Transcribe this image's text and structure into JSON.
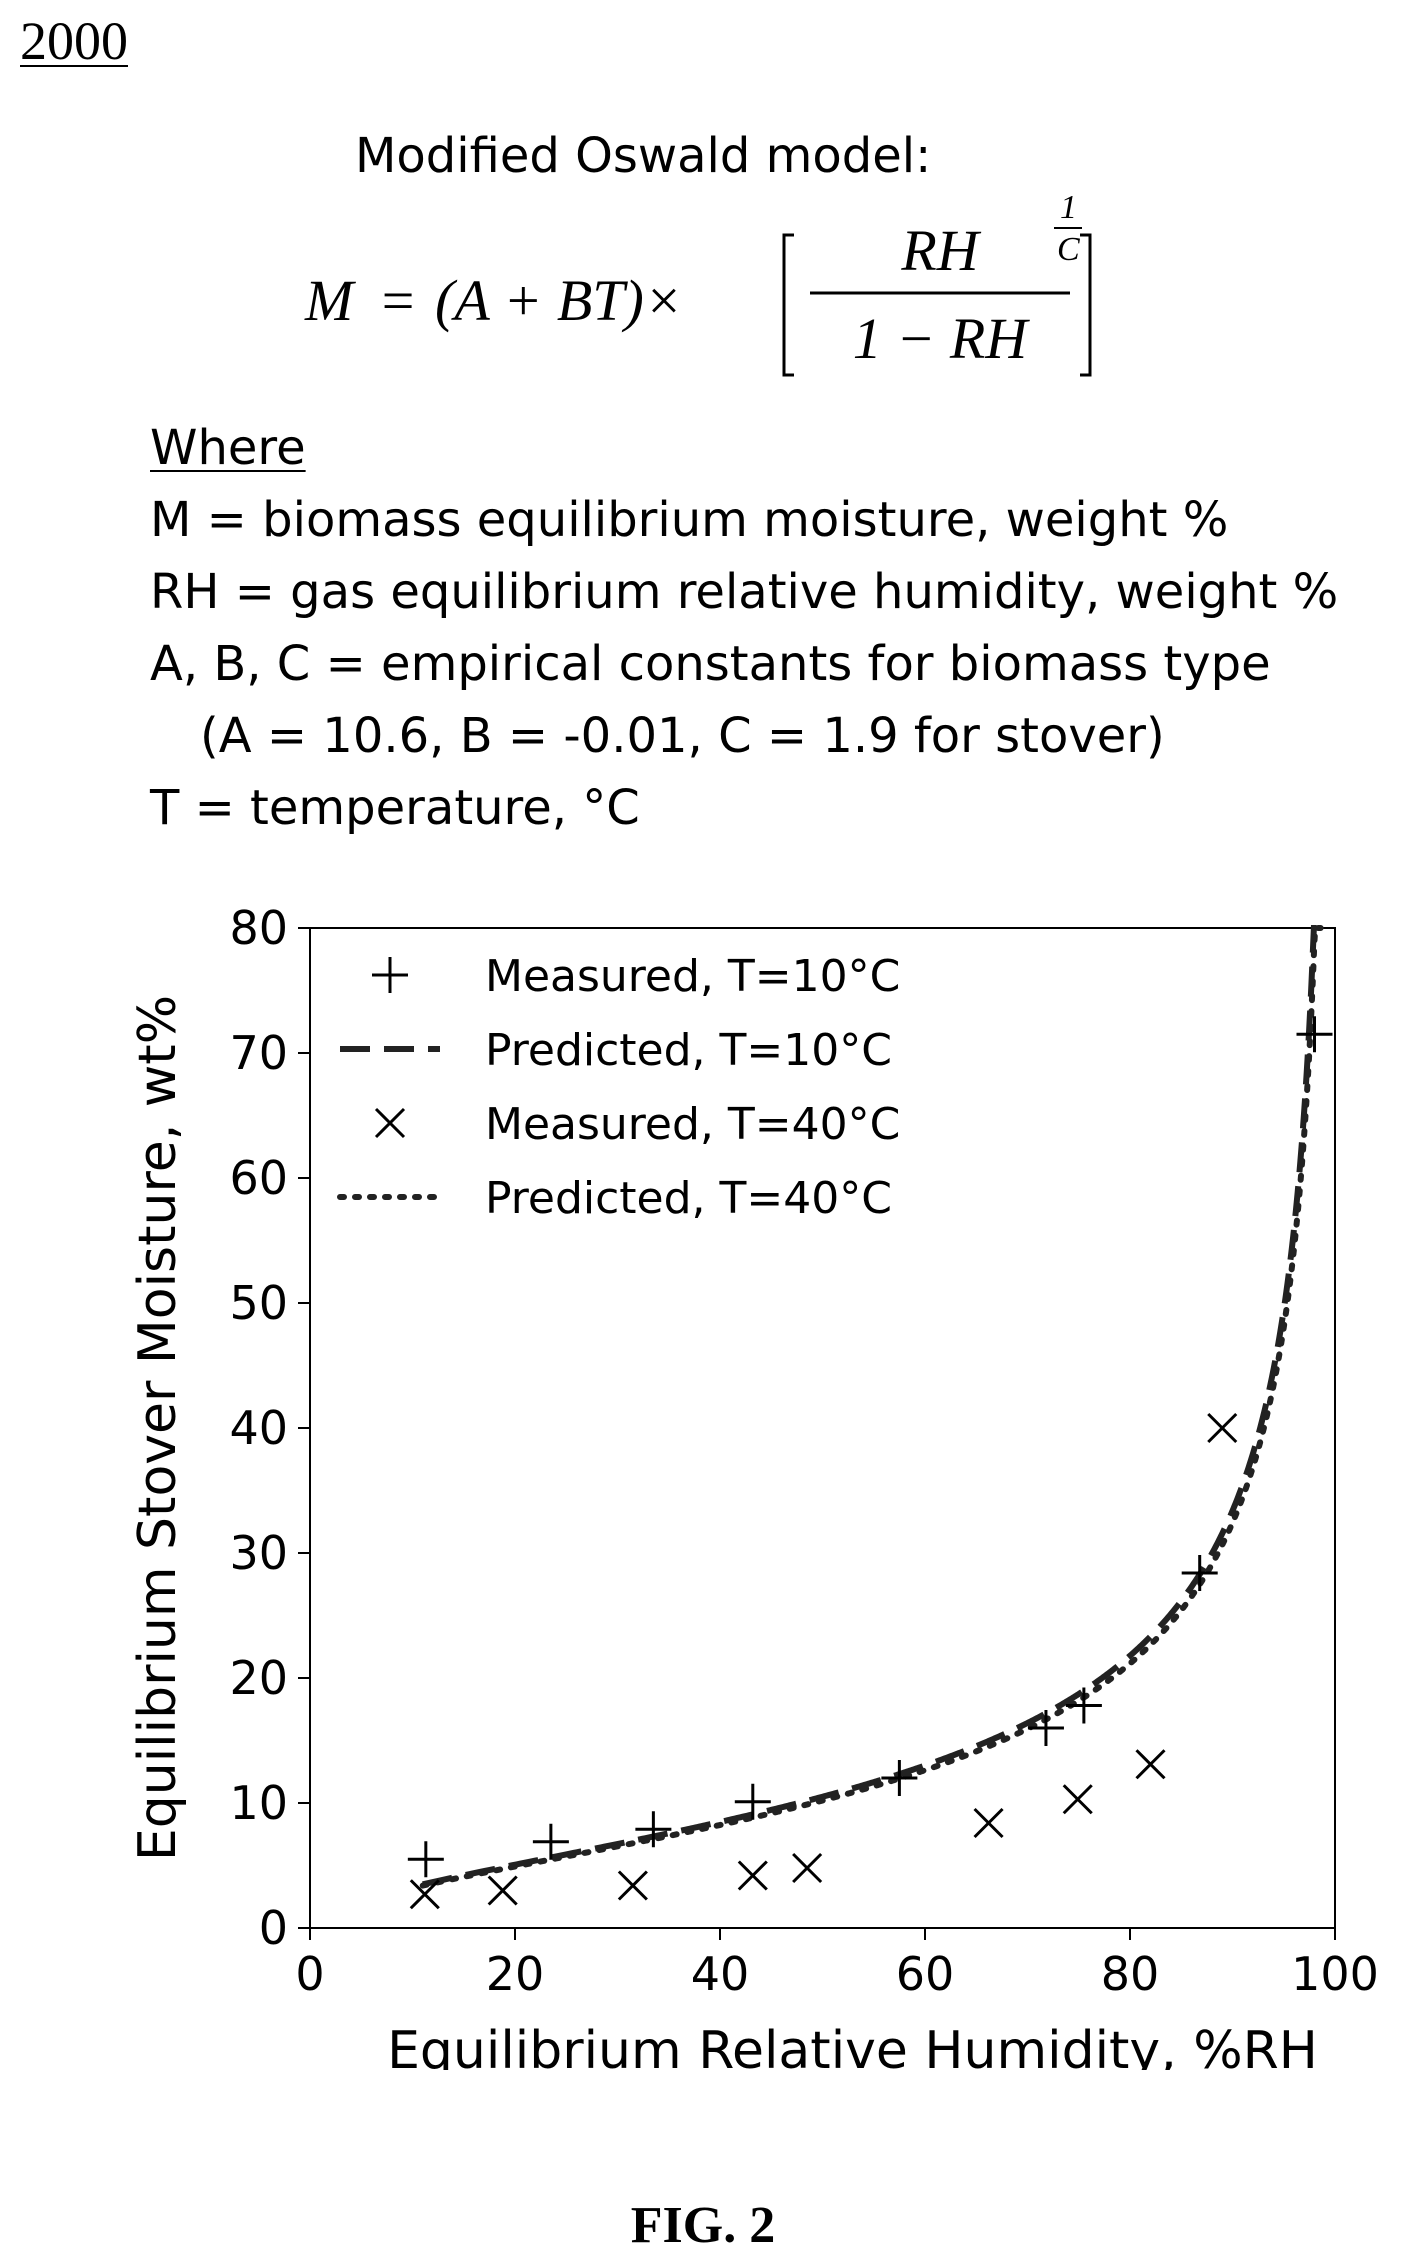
{
  "figure_ref": "2000",
  "model_heading": "Modified Oswald model:",
  "formula": {
    "lhs": "M",
    "equals": "=",
    "factor": "(A + BT)×",
    "numerator": "RH",
    "denominator": "1 − RH",
    "exp_num": "1",
    "exp_den": "C"
  },
  "where": {
    "title": "Where",
    "lines": [
      "M = biomass equilibrium moisture, weight %",
      "RH = gas equilibrium relative humidity, weight %",
      "A, B, C = empirical constants for biomass type",
      "(A = 10.6, B = -0.01, C = 1.9 for stover)",
      "T = temperature, °C"
    ]
  },
  "chart_data": {
    "type": "scatter",
    "xlabel": "Equilibrium Relative Humidity, %RH",
    "ylabel": "Equilibrium Stover Moisture, wt%",
    "xlim": [
      0,
      100
    ],
    "ylim": [
      0,
      80
    ],
    "xticks": [
      0,
      20,
      40,
      60,
      80,
      100
    ],
    "yticks": [
      0,
      10,
      20,
      30,
      40,
      50,
      60,
      70,
      80
    ],
    "legend_position": "top-left",
    "grid": false,
    "series": [
      {
        "name": "Measured, T=10°C",
        "kind": "marker-plus",
        "points": [
          [
            11.3,
            5.5
          ],
          [
            23.5,
            6.9
          ],
          [
            33.5,
            7.9
          ],
          [
            43.2,
            10.1
          ],
          [
            57.5,
            12.0
          ],
          [
            71.8,
            16.0
          ],
          [
            75.5,
            17.8
          ],
          [
            86.8,
            28.4
          ],
          [
            98.0,
            71.5
          ]
        ]
      },
      {
        "name": "Predicted, T=10°C",
        "kind": "dashed-line",
        "model": {
          "A": 10.6,
          "B": -0.01,
          "C": 1.9,
          "T": 10
        },
        "x_range": [
          11,
          98.2
        ]
      },
      {
        "name": "Measured, T=40°C",
        "kind": "marker-x",
        "points": [
          [
            11.2,
            2.7
          ],
          [
            18.8,
            3.0
          ],
          [
            31.5,
            3.4
          ],
          [
            43.2,
            4.2
          ],
          [
            48.5,
            4.8
          ],
          [
            66.2,
            8.4
          ],
          [
            74.9,
            10.3
          ],
          [
            82.0,
            13.1
          ],
          [
            89.0,
            40.0
          ]
        ]
      },
      {
        "name": "Predicted, T=40°C",
        "kind": "dotted-line",
        "model": {
          "A": 10.6,
          "B": -0.01,
          "C": 1.9,
          "T": 40
        },
        "x_range": [
          11,
          98.6
        ]
      }
    ]
  },
  "fig_label": "FIG. 2"
}
